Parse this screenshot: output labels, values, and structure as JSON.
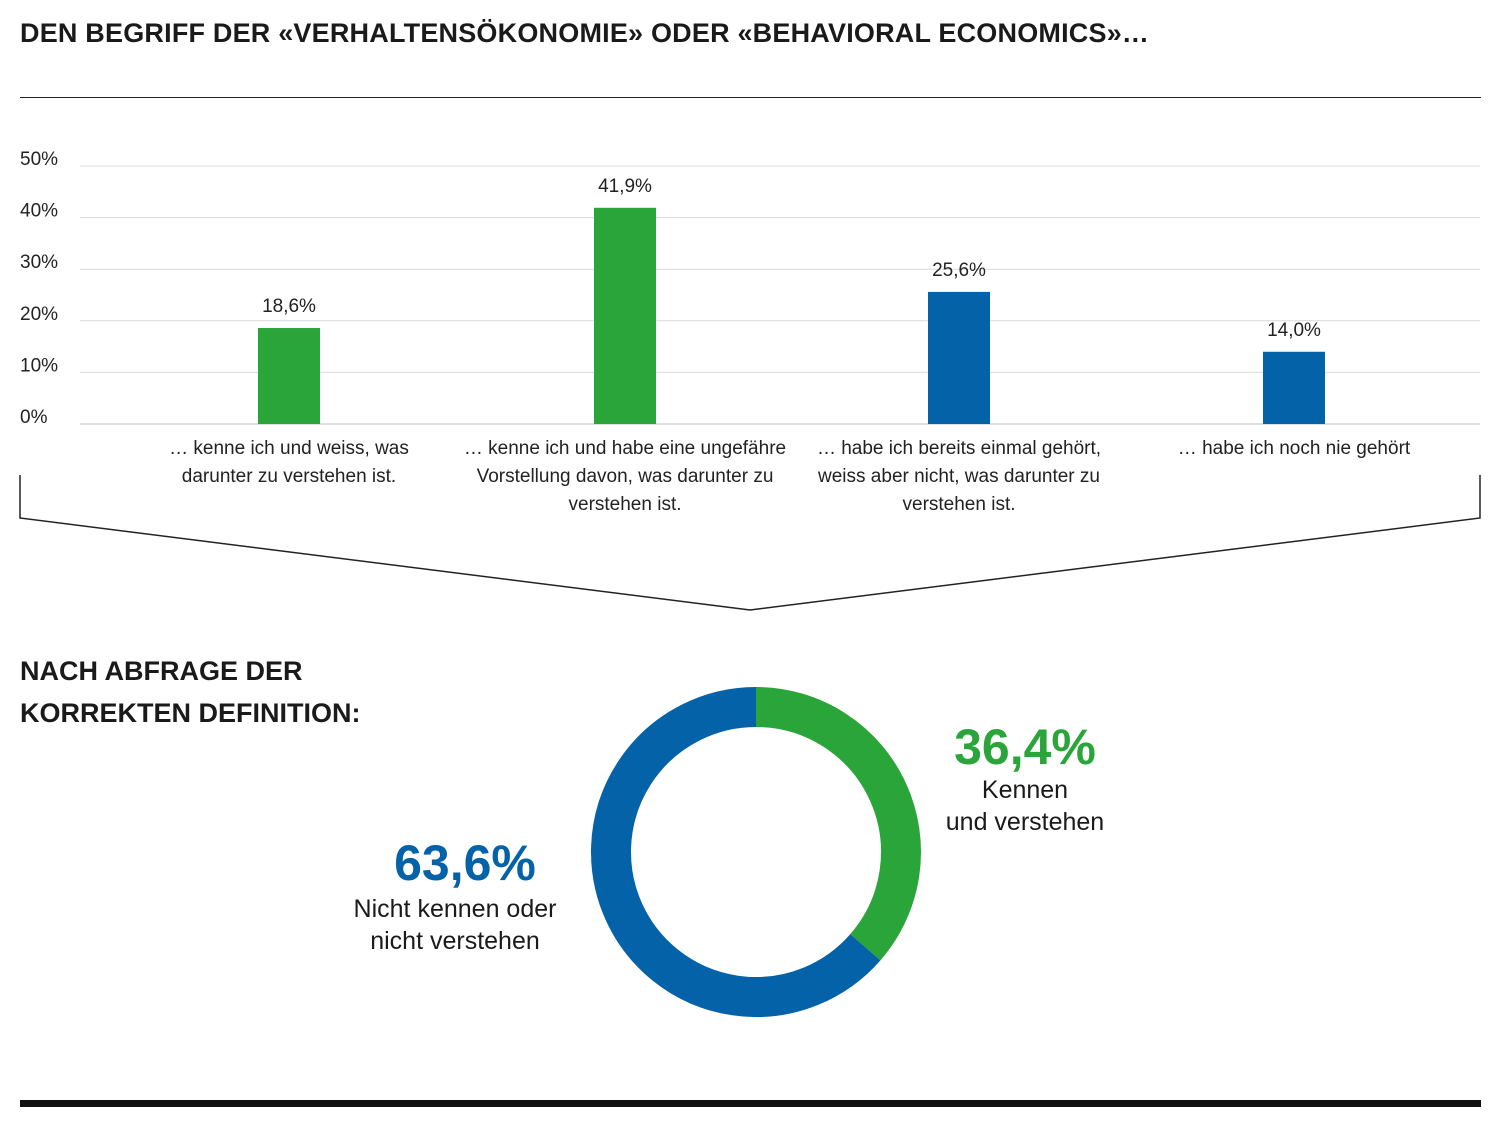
{
  "title": "DEN BEGRIFF DER «VERHALTENSÖKONOMIE» ODER «BEHAVIORAL ECONOMICS»…",
  "colors": {
    "green": "#2aa53a",
    "blue": "#0462a8",
    "grid": "#d9d9d9"
  },
  "chart_data": [
    {
      "type": "bar",
      "title": "DEN BEGRIFF DER «VERHALTENSÖKONOMIE» ODER «BEHAVIORAL ECONOMICS»…",
      "ylim": [
        0,
        50
      ],
      "yticks": [
        "0%",
        "10%",
        "20%",
        "30%",
        "40%",
        "50%"
      ],
      "grid": true,
      "categories": [
        "… kenne ich und weiss, was darunter zu verstehen ist.",
        "… kenne ich und habe eine ungefähre Vorstellung davon, was darunter zu verstehen ist.",
        "… habe ich bereits einmal gehört, weiss aber nicht, was darunter zu verstehen ist.",
        "… habe ich noch nie gehört"
      ],
      "values": [
        18.6,
        41.9,
        25.6,
        14.0
      ],
      "data_labels": [
        "18,6%",
        "41,9%",
        "25,6%",
        "14,0%"
      ],
      "bar_colors": [
        "#2aa53a",
        "#2aa53a",
        "#0462a8",
        "#0462a8"
      ]
    },
    {
      "type": "pie",
      "title": "NACH ABFRAGE DER KORREKTEN DEFINITION:",
      "slices": [
        {
          "label": "Kennen und verstehen",
          "value": 36.4,
          "display": "36,4%",
          "color": "#2aa53a"
        },
        {
          "label": "Nicht kennen oder nicht verstehen",
          "value": 63.6,
          "display": "63,6%",
          "color": "#0462a8"
        }
      ]
    }
  ],
  "subtitle_line1": "NACH ABFRAGE DER",
  "subtitle_line2": "KORREKTEN DEFINITION:",
  "donut_labels": {
    "green_pct": "36,4%",
    "green_line1": "Kennen",
    "green_line2": "und verstehen",
    "blue_pct": "63,6%",
    "blue_line1": "Nicht kennen oder",
    "blue_line2": "nicht verstehen"
  }
}
